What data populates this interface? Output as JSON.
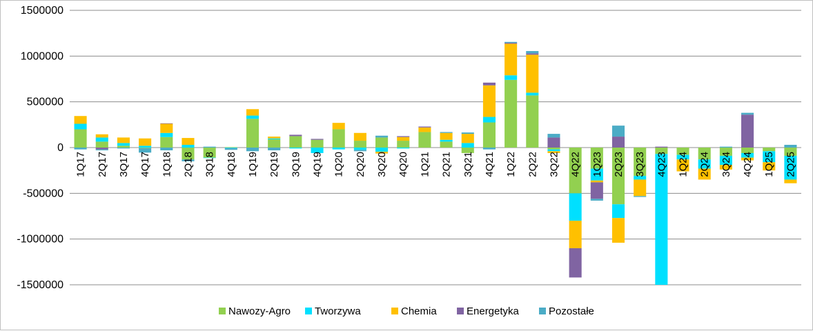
{
  "chart_data": {
    "type": "bar",
    "stacked": true,
    "title": "",
    "xlabel": "",
    "ylabel": "",
    "ylim": [
      -1500000,
      1500000
    ],
    "yticks": [
      -1500000,
      -1000000,
      -500000,
      0,
      500000,
      1000000,
      1500000
    ],
    "ytick_labels": [
      "-1500000",
      "-1000000",
      "-500000",
      "0",
      "500000",
      "1000000",
      "1500000"
    ],
    "grid": true,
    "legend_position": "bottom",
    "categories": [
      "1Q17",
      "2Q17",
      "3Q17",
      "4Q17",
      "1Q18",
      "2Q18",
      "3Q18",
      "4Q18",
      "1Q19",
      "2Q19",
      "3Q19",
      "4Q19",
      "1Q20",
      "2Q20",
      "3Q20",
      "4Q20",
      "1Q21",
      "2Q21",
      "3Q21",
      "4Q21",
      "1Q22",
      "2Q22",
      "3Q22",
      "4Q22",
      "1Q23",
      "2Q23",
      "3Q23",
      "4Q23",
      "1Q24",
      "2Q24",
      "3Q24",
      "4Q24",
      "1Q25",
      "2Q25"
    ],
    "series": [
      {
        "name": "Nawozy-Agro",
        "color": "#92d050",
        "values": [
          200000,
          65000,
          20000,
          -5000,
          115000,
          -130000,
          -110000,
          5000,
          315000,
          90000,
          125000,
          85000,
          200000,
          75000,
          110000,
          75000,
          170000,
          65000,
          -60000,
          275000,
          740000,
          570000,
          -20000,
          -500000,
          -230000,
          -620000,
          -310000,
          -70000,
          -80000,
          -130000,
          -90000,
          -60000,
          -40000,
          -90000
        ]
      },
      {
        "name": "Tworzywa",
        "color": "#00e0ff",
        "values": [
          60000,
          45000,
          30000,
          20000,
          45000,
          30000,
          -5000,
          -5000,
          35000,
          10000,
          -10000,
          -60000,
          -20000,
          -25000,
          -45000,
          -10000,
          0,
          20000,
          50000,
          60000,
          50000,
          30000,
          -20000,
          -300000,
          -130000,
          -150000,
          -40000,
          -1430000,
          -50000,
          -100000,
          -100000,
          -50000,
          -120000,
          -260000
        ]
      },
      {
        "name": "Chemia",
        "color": "#ffc000",
        "values": [
          85000,
          35000,
          60000,
          80000,
          100000,
          75000,
          0,
          0,
          70000,
          20000,
          0,
          0,
          70000,
          85000,
          -20000,
          40000,
          50000,
          75000,
          100000,
          345000,
          345000,
          415000,
          -20000,
          -300000,
          -20000,
          -270000,
          -180000,
          0,
          -130000,
          -120000,
          -50000,
          -30000,
          -90000,
          -40000
        ]
      },
      {
        "name": "Energetyka",
        "color": "#8064a2",
        "values": [
          0,
          -20000,
          0,
          0,
          5000,
          0,
          0,
          0,
          0,
          0,
          15000,
          10000,
          0,
          0,
          0,
          10000,
          10000,
          0,
          0,
          30000,
          10000,
          15000,
          110000,
          -320000,
          -180000,
          120000,
          0,
          10000,
          0,
          0,
          0,
          360000,
          0,
          0
        ]
      },
      {
        "name": "Pozostałe",
        "color": "#4bacc6",
        "values": [
          -20000,
          -10000,
          -10000,
          -50000,
          -30000,
          -20000,
          10000,
          -20000,
          -40000,
          -30000,
          0,
          0,
          0,
          -15000,
          20000,
          0,
          0,
          10000,
          15000,
          -20000,
          10000,
          25000,
          40000,
          0,
          -20000,
          120000,
          -10000,
          0,
          0,
          0,
          10000,
          20000,
          0,
          30000
        ]
      }
    ]
  }
}
